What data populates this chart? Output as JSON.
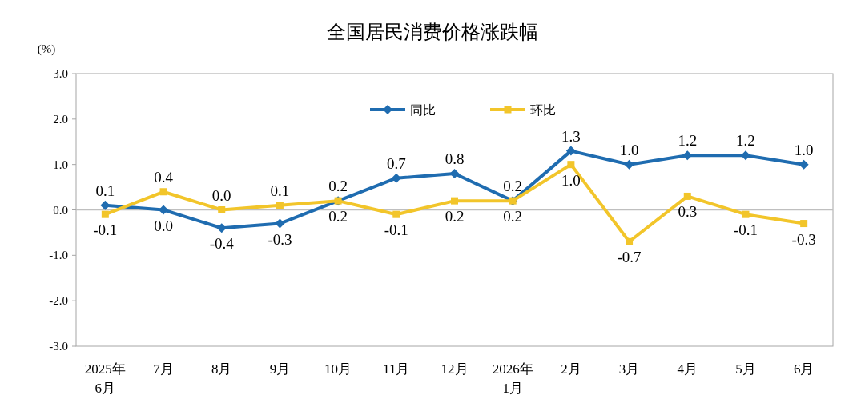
{
  "chart_data": {
    "type": "line",
    "title": "全国居民消费价格涨跌幅",
    "ylabel": "(%)",
    "categories": [
      "2025年\n6月",
      "7月",
      "8月",
      "9月",
      "10月",
      "11月",
      "12月",
      "2026年\n1月",
      "2月",
      "3月",
      "4月",
      "5月",
      "6月"
    ],
    "series": [
      {
        "name": "同比",
        "color": "#1f6cb0",
        "marker": "diamond",
        "values": [
          0.1,
          0.0,
          -0.4,
          -0.3,
          0.2,
          0.7,
          0.8,
          0.2,
          1.3,
          1.0,
          1.2,
          1.2,
          1.0
        ],
        "value_labels": [
          "0.1",
          "0.0",
          "-0.4",
          "-0.3",
          "0.2",
          "0.7",
          "0.8",
          "0.2",
          "1.3",
          "1.0",
          "1.2",
          "1.2",
          "1.0"
        ]
      },
      {
        "name": "环比",
        "color": "#f2c52a",
        "marker": "square",
        "values": [
          -0.1,
          0.4,
          0.0,
          0.1,
          0.2,
          -0.1,
          0.2,
          0.2,
          1.0,
          -0.7,
          0.3,
          -0.1,
          -0.3
        ],
        "value_labels": [
          "-0.1",
          "0.4",
          "0.0",
          "0.1",
          "0.2",
          "-0.1",
          "0.2",
          "0.2",
          "1.0",
          "-0.7",
          "0.3",
          "-0.1",
          "-0.3"
        ]
      }
    ],
    "ylim": [
      -3,
      3
    ],
    "yticks": [
      {
        "value": -3,
        "label": "-3.0"
      },
      {
        "value": -2,
        "label": "-2.0"
      },
      {
        "value": -1,
        "label": "-1.0"
      },
      {
        "value": 0,
        "label": "0.0"
      },
      {
        "value": 1,
        "label": "1.0"
      },
      {
        "value": 2,
        "label": "2.0"
      },
      {
        "value": 3,
        "label": "3.0"
      }
    ],
    "ref_lines": [
      {
        "axis": "y",
        "value": 0,
        "color": "#bfbfbf"
      }
    ],
    "legend": "top",
    "grid": false
  }
}
